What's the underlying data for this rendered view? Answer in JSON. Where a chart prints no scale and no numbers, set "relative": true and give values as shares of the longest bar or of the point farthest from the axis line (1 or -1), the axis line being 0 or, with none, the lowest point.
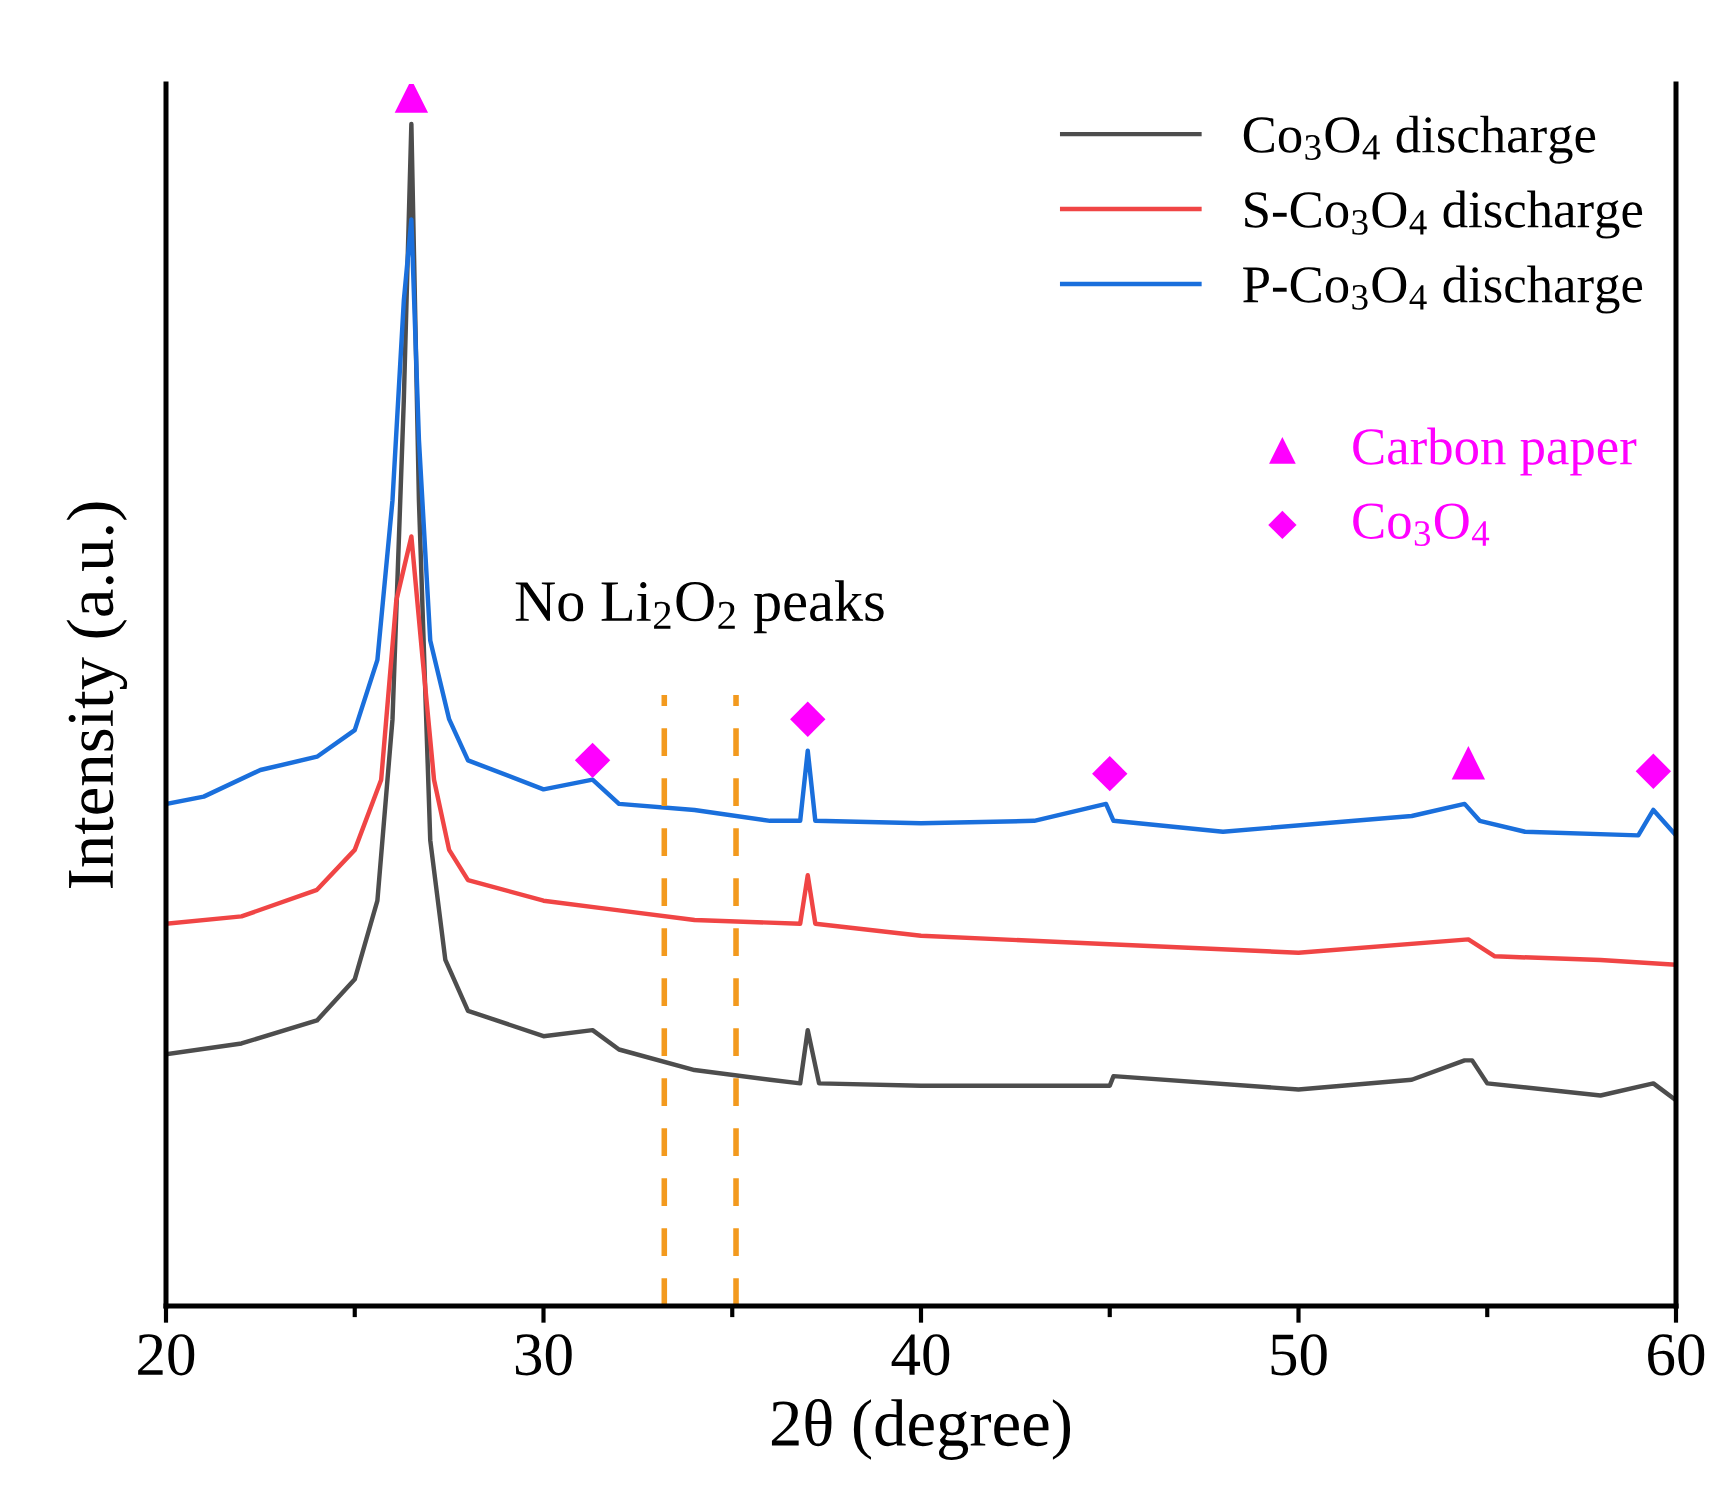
{
  "chart_data": {
    "type": "line",
    "relative": true,
    "xlabel": "2θ (degree)",
    "ylabel": "Intensity (a.u.)",
    "xlim": [
      20,
      60
    ],
    "xticks": [
      20,
      30,
      40,
      50,
      60
    ],
    "tick_labels": "x",
    "legend": "top right",
    "grid": false,
    "annotations": [
      "No Li$_{2}$O$_{2}$ peaks"
    ],
    "ref_lines": [
      {
        "axis": "x",
        "value": 33.2,
        "color": "#f39a1e",
        "line_style": "dashed"
      },
      {
        "axis": "x",
        "value": 35.1,
        "color": "#f39a1e",
        "line_style": "dashed"
      }
    ],
    "series": [
      {
        "name": "Co$_{3}$O$_{4}$ discharge",
        "color": "#4d4d4d",
        "x": [
          20,
          22,
          24,
          25,
          25.6,
          26.0,
          26.3,
          26.5,
          26.7,
          27.0,
          27.4,
          28,
          30,
          31.3,
          32,
          34,
          36,
          36.8,
          37.0,
          37.3,
          40,
          45,
          45.1,
          50,
          53,
          54.4,
          54.6,
          55,
          58,
          59.4,
          60
        ],
        "values": [
          0.208,
          0.217,
          0.236,
          0.27,
          0.335,
          0.485,
          0.749,
          0.977,
          0.666,
          0.385,
          0.286,
          0.244,
          0.223,
          0.228,
          0.212,
          0.195,
          0.187,
          0.184,
          0.228,
          0.184,
          0.182,
          0.182,
          0.19,
          0.179,
          0.187,
          0.203,
          0.203,
          0.184,
          0.174,
          0.184,
          0.17
        ]
      },
      {
        "name": "S-Co$_{3}$O$_{4}$ discharge",
        "color": "#f04545",
        "x": [
          20,
          22,
          24,
          25,
          25.7,
          26.1,
          26.5,
          26.8,
          27.1,
          27.5,
          28,
          30,
          32,
          34,
          36.8,
          37.0,
          37.2,
          40,
          45,
          50,
          54.5,
          55.2,
          58,
          60
        ],
        "values": [
          0.316,
          0.322,
          0.344,
          0.377,
          0.435,
          0.583,
          0.636,
          0.534,
          0.435,
          0.377,
          0.352,
          0.335,
          0.327,
          0.319,
          0.316,
          0.356,
          0.316,
          0.306,
          0.299,
          0.292,
          0.303,
          0.289,
          0.286,
          0.282
        ]
      },
      {
        "name": "P-Co$_{3}$O$_{4}$ discharge",
        "color": "#1a6fdc",
        "x": [
          20,
          21,
          22.5,
          24,
          25,
          25.6,
          26.0,
          26.3,
          26.5,
          26.7,
          27.0,
          27.5,
          28,
          30,
          31.3,
          32,
          34,
          36,
          36.8,
          37.0,
          37.2,
          40,
          43,
          44.9,
          45.1,
          48,
          53,
          54.4,
          54.8,
          56,
          59,
          59.4,
          60
        ],
        "values": [
          0.415,
          0.421,
          0.443,
          0.454,
          0.476,
          0.534,
          0.666,
          0.831,
          0.898,
          0.716,
          0.55,
          0.485,
          0.451,
          0.427,
          0.435,
          0.415,
          0.41,
          0.401,
          0.401,
          0.459,
          0.401,
          0.399,
          0.401,
          0.415,
          0.401,
          0.392,
          0.405,
          0.415,
          0.401,
          0.392,
          0.389,
          0.41,
          0.389
        ]
      },
      {
        "name": "Carbon paper",
        "type": "scatter",
        "marker": "triangle",
        "color": "#ff00ff",
        "x": [
          26.5,
          54.5
        ],
        "values": [
          1,
          0.449
        ]
      },
      {
        "name": "Co$_{3}$O$_{4}$",
        "type": "scatter",
        "marker": "diamond",
        "color": "#ff00ff",
        "x": [
          31.3,
          37.0,
          45.0,
          59.4
        ],
        "values": [
          0.451,
          0.485,
          0.44,
          0.442
        ]
      }
    ]
  }
}
